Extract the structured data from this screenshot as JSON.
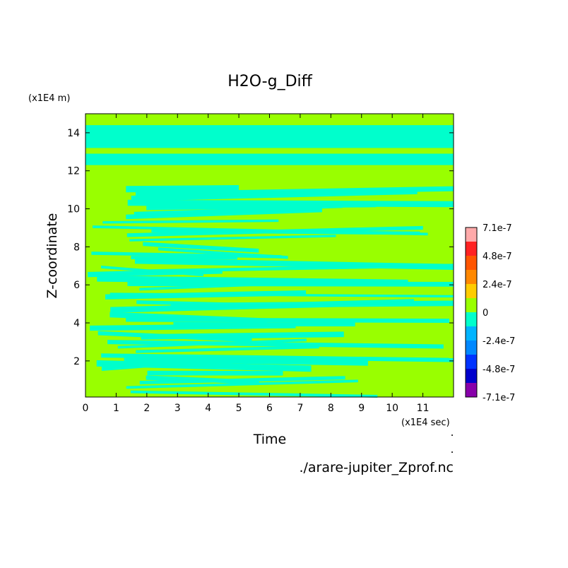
{
  "chart_data": {
    "type": "heatmap",
    "title": "H2O-g_Diff",
    "xlabel": "Time",
    "ylabel": "Z-coordinate",
    "x_unit": "(x1E4 sec)",
    "y_unit": "(x1E4 m)",
    "xlim": [
      0,
      12
    ],
    "ylim": [
      0.1,
      15
    ],
    "x_ticks": [
      0,
      1,
      2,
      3,
      4,
      5,
      6,
      7,
      8,
      9,
      10,
      11
    ],
    "y_ticks": [
      2,
      4,
      6,
      8,
      10,
      12,
      14
    ],
    "footer": "./arare-jupiter_Zprof.nc",
    "colorbar": {
      "levels": [
        "-7.1e-7",
        "-4.8e-7",
        "-2.4e-7",
        "0",
        "2.4e-7",
        "4.8e-7",
        "7.1e-7"
      ],
      "colors": [
        "#8800aa",
        "#0000cc",
        "#0033ff",
        "#0088ff",
        "#00b4ff",
        "#00ffcc",
        "#99ff00",
        "#ffcc00",
        "#ff8800",
        "#ff5500",
        "#ff2222",
        "#ffaaaa"
      ]
    },
    "dominant_values": {
      "near_zero_negative_color": "#00ffcc",
      "near_zero_positive_color": "#99ff00"
    }
  }
}
